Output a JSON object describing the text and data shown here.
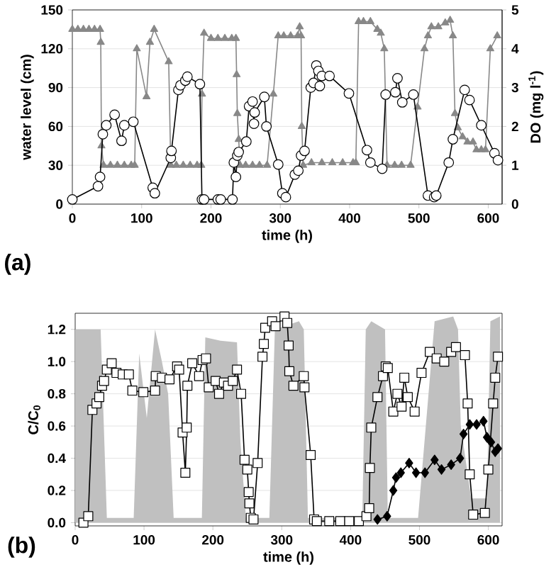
{
  "chart_data": [
    {
      "type": "line",
      "xlabel": "time (h)",
      "ylabel": "water level (cm)",
      "y2label": "DO (mg l$^{-1}$)",
      "xlim": [
        0,
        620
      ],
      "xticks": [
        0,
        100,
        200,
        300,
        400,
        500,
        600
      ],
      "ylim": [
        0,
        150
      ],
      "yticks": [
        0,
        30,
        60,
        90,
        120,
        150
      ],
      "y2lim": [
        0,
        5
      ],
      "y2ticks": [
        0,
        1,
        2,
        3,
        4,
        5
      ],
      "grid": "y",
      "annotations": [
        "(a)"
      ],
      "series": [
        {
          "color": "#888888",
          "marker": "triangle",
          "x": [
            0,
            8,
            16,
            24,
            32,
            40,
            41,
            42,
            45,
            55,
            65,
            75,
            85,
            90,
            93,
            107,
            112,
            118,
            139,
            142,
            150,
            160,
            170,
            180,
            186,
            187,
            190,
            200,
            210,
            220,
            230,
            236,
            237,
            238,
            240,
            242,
            250,
            260,
            270,
            281,
            290,
            297,
            305,
            315,
            325,
            328,
            330,
            331,
            333,
            345,
            360,
            375,
            390,
            405,
            409,
            413,
            420,
            430,
            440,
            445,
            450,
            454,
            465,
            475,
            488,
            498,
            508,
            513,
            518,
            528,
            538,
            545,
            549,
            552,
            556,
            563,
            570,
            578,
            583,
            590,
            596,
            603,
            613
          ],
          "values": [
            135,
            135,
            135,
            135,
            135,
            135,
            125,
            45,
            30,
            30,
            30,
            30,
            30,
            30,
            120,
            83,
            125,
            135,
            110,
            30,
            30,
            30,
            30,
            30,
            30,
            85,
            132,
            128,
            128,
            128,
            128,
            128,
            100,
            70,
            50,
            30,
            30,
            30,
            30,
            30,
            85,
            130,
            130,
            130,
            130,
            137,
            130,
            60,
            30,
            32,
            32,
            32,
            32,
            32,
            32,
            141,
            141,
            141,
            135,
            132,
            120,
            30,
            30,
            30,
            30,
            75,
            120,
            130,
            137,
            137,
            140,
            142,
            130,
            70,
            59,
            52,
            48,
            48,
            42,
            42,
            42,
            120,
            130
          ]
        },
        {
          "color": "#000000",
          "marker": "circle",
          "axis": "y2",
          "x": [
            0,
            37,
            40,
            44,
            49,
            61,
            71,
            75,
            88,
            116,
            119,
            142,
            143,
            153,
            156,
            163,
            166,
            184,
            187,
            190,
            210,
            214,
            231,
            233,
            236,
            238,
            240,
            251,
            255,
            260,
            262,
            263,
            277,
            280,
            297,
            303,
            308,
            321,
            326,
            330,
            335,
            344,
            348,
            352,
            355,
            357,
            360,
            371,
            399,
            425,
            430,
            447,
            452,
            466,
            469,
            476,
            492,
            513,
            522,
            525,
            543,
            549,
            566,
            573,
            590,
            609,
            614
          ],
          "values": [
            0.12,
            0.46,
            0.7,
            1.8,
            2.03,
            2.3,
            1.63,
            2.03,
            2.12,
            0.42,
            0.28,
            1.19,
            1.37,
            2.94,
            3.06,
            3.18,
            3.28,
            3.09,
            0.12,
            0.12,
            0.12,
            0.12,
            0.12,
            1.07,
            0.7,
            1.25,
            1.34,
            1.61,
            2.52,
            2.64,
            2.07,
            2.36,
            2.76,
            2.0,
            1.02,
            0.28,
            0.18,
            0.76,
            0.86,
            1.25,
            1.37,
            3.0,
            3.12,
            3.57,
            3.43,
            3.04,
            3.3,
            3.3,
            2.85,
            1.39,
            1.07,
            0.91,
            2.82,
            2.88,
            3.24,
            2.62,
            2.82,
            0.22,
            0.18,
            0.22,
            1.07,
            1.67,
            2.94,
            2.68,
            2.03,
            1.31,
            1.13
          ]
        }
      ]
    },
    {
      "type": "line",
      "xlabel": "time (h)",
      "ylabel": "C/C$_{0}$",
      "xlim": [
        0,
        620
      ],
      "xticks": [
        0,
        100,
        200,
        300,
        400,
        500,
        600
      ],
      "ylim": [
        -0.02,
        1.3
      ],
      "yticks": [
        {
          "value": 0,
          "label": "0.0"
        },
        0.2,
        0.4,
        0.6,
        0.8,
        {
          "value": 1,
          "label": "1.0"
        },
        1.2
      ],
      "grid": "y",
      "annotations": [
        "(b)"
      ],
      "series": [
        {
          "type": "area",
          "color": "#c0c0c0",
          "x": [
            0,
            37,
            46,
            85,
            93,
            104,
            116,
            126,
            135,
            143,
            184,
            189,
            211,
            235,
            240,
            248,
            282,
            290,
            325,
            332,
            338,
            417,
            422,
            430,
            450,
            454,
            498,
            522,
            549,
            556,
            560,
            575,
            598,
            603,
            617
          ],
          "values": [
            1.2,
            1.2,
            0.03,
            0.03,
            1.05,
            0.65,
            1.2,
            1.0,
            0.8,
            0.03,
            0.03,
            1.15,
            1.13,
            1.12,
            0.5,
            0.03,
            0.03,
            1.2,
            1.25,
            1.2,
            0.03,
            0.03,
            1.2,
            1.25,
            1.2,
            0.03,
            0.03,
            1.25,
            1.28,
            1.2,
            0.6,
            0.15,
            0.15,
            1.25,
            1.28
          ]
        },
        {
          "color": "#000000",
          "marker": "square",
          "x": [
            12,
            19,
            25,
            31,
            35,
            39,
            42,
            46,
            53,
            60,
            69,
            78,
            83,
            99,
            116,
            117,
            126,
            137,
            148,
            151,
            156,
            160,
            162,
            163,
            170,
            180,
            185,
            190,
            194,
            204,
            209,
            216,
            222,
            229,
            235,
            241,
            246,
            250,
            252,
            253,
            255,
            259,
            265,
            272,
            274,
            276,
            286,
            291,
            304,
            308,
            310,
            311,
            317,
            332,
            333,
            342,
            347,
            351,
            369,
            385,
            398,
            412,
            423,
            427,
            428,
            430,
            439,
            447,
            451,
            454,
            462,
            468,
            474,
            478,
            483,
            493,
            503,
            515,
            525,
            536,
            546,
            553,
            566,
            570,
            573,
            578,
            595,
            600,
            607,
            610,
            614
          ],
          "values": [
            0.0,
            0.04,
            0.7,
            0.74,
            0.78,
            0.85,
            0.88,
            0.95,
            0.99,
            0.93,
            0.92,
            0.92,
            0.82,
            0.81,
            0.82,
            0.91,
            0.9,
            0.89,
            0.97,
            0.95,
            0.56,
            0.31,
            0.59,
            0.85,
            0.99,
            0.91,
            1.01,
            1.02,
            0.84,
            0.88,
            0.8,
            0.87,
            0.85,
            0.88,
            0.95,
            0.8,
            0.39,
            0.33,
            0.19,
            0.12,
            0.03,
            0.02,
            0.37,
            1.03,
            1.11,
            1.21,
            1.25,
            1.22,
            1.28,
            1.24,
            1.1,
            0.94,
            0.85,
            0.91,
            0.84,
            0.42,
            0.02,
            0.01,
            0.01,
            0.01,
            0.01,
            0.01,
            0.04,
            0.09,
            0.34,
            0.59,
            0.78,
            0.91,
            0.97,
            0.96,
            0.69,
            0.8,
            0.72,
            0.9,
            0.78,
            0.69,
            0.93,
            1.06,
            1.02,
            1.0,
            1.06,
            1.09,
            1.04,
            0.74,
            0.3,
            0.05,
            0.06,
            0.33,
            0.74,
            0.9,
            1.03
          ]
        },
        {
          "color": "#000000",
          "marker": "diamond",
          "x": [
            439,
            453,
            462,
            466,
            473,
            485,
            495,
            508,
            522,
            532,
            546,
            559,
            564,
            573,
            583,
            593,
            598,
            604,
            610,
            614
          ],
          "values": [
            0.02,
            0.04,
            0.2,
            0.28,
            0.31,
            0.37,
            0.31,
            0.31,
            0.39,
            0.33,
            0.36,
            0.4,
            0.55,
            0.61,
            0.61,
            0.63,
            0.53,
            0.5,
            0.44,
            0.46
          ]
        }
      ]
    }
  ]
}
